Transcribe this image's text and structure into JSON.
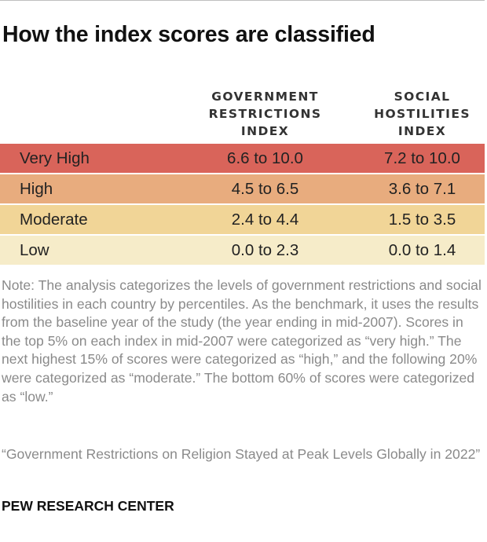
{
  "title": "How the index scores are classified",
  "columns": {
    "government": [
      "GOVERNMENT",
      "RESTRICTIONS",
      "INDEX"
    ],
    "social": [
      "SOCIAL",
      "HOSTILITIES",
      "INDEX"
    ]
  },
  "rows": [
    {
      "label": "Very High",
      "gov": "6.6 to 10.0",
      "soc": "7.2 to 10.0",
      "color": "#d9645a"
    },
    {
      "label": "High",
      "gov": "4.5 to 6.5",
      "soc": "3.6 to 7.1",
      "color": "#e8ac7e"
    },
    {
      "label": "Moderate",
      "gov": "2.4 to 4.4",
      "soc": "1.5 to 3.5",
      "color": "#f1d597"
    },
    {
      "label": "Low",
      "gov": "0.0 to 2.3",
      "soc": "0.0 to 1.4",
      "color": "#f6ecc9"
    }
  ],
  "note": "Note: The analysis categorizes the levels of government restrictions and social hostilities in each country by percentiles. As the benchmark, it uses the results from the baseline year of the study (the year ending in mid-2007). Scores in the top 5% on each index in mid-2007 were categorized as “very high.” The next highest 15% of scores were categorized as “high,” and the following 20% were categorized as “moderate.” The bottom 60% of scores were categorized as “low.”",
  "source": "“Government Restrictions on Religion Stayed at Peak Levels Globally in 2022”",
  "brand": "PEW RESEARCH CENTER"
}
